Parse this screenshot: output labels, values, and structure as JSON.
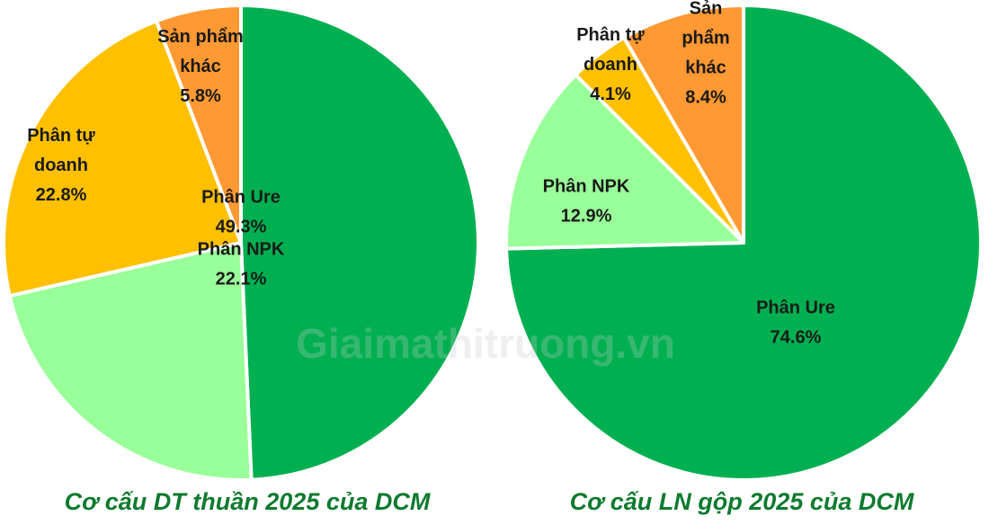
{
  "watermark": "Giaimathitruong.vn",
  "caption_color": "#0e7a2e",
  "chart_data": [
    {
      "type": "pie",
      "title": "Cơ cấu DT thuần 2025 của DCM",
      "start_angle_deg": 90,
      "direction": "clockwise",
      "slices": [
        {
          "label": [
            "Phân Ure"
          ],
          "percent_label": "49.3%",
          "value": 49.3,
          "color": "#00b050"
        },
        {
          "label": [
            "Phân NPK"
          ],
          "percent_label": "22.1%",
          "value": 22.1,
          "color": "#99ff99"
        },
        {
          "label": [
            "Phân tự",
            "doanh"
          ],
          "percent_label": "22.8%",
          "value": 22.8,
          "color": "#ffc000"
        },
        {
          "label": [
            "Sản phẩm",
            "khác"
          ],
          "percent_label": "5.8%",
          "value": 5.8,
          "color": "#ff9933"
        }
      ]
    },
    {
      "type": "pie",
      "title": "Cơ cấu LN gộp 2025 của DCM",
      "start_angle_deg": 90,
      "direction": "clockwise",
      "slices": [
        {
          "label": [
            "Phân Ure"
          ],
          "percent_label": "74.6%",
          "value": 74.6,
          "color": "#00b050"
        },
        {
          "label": [
            "Phân NPK"
          ],
          "percent_label": "12.9%",
          "value": 12.9,
          "color": "#99ff99"
        },
        {
          "label": [
            "Phân tự",
            "doanh"
          ],
          "percent_label": "4.1%",
          "value": 4.1,
          "color": "#ffc000"
        },
        {
          "label": [
            "Sản",
            "phẩm",
            "khác"
          ],
          "percent_label": "8.4%",
          "value": 8.4,
          "color": "#ff9933"
        }
      ]
    }
  ]
}
